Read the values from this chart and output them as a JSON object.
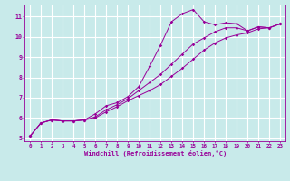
{
  "bg_color": "#c8eaea",
  "grid_color": "#b0d8d8",
  "line_color": "#990099",
  "xlabel": "Windchill (Refroidissement éolien,°C)",
  "xlim": [
    -0.5,
    23.5
  ],
  "ylim": [
    4.85,
    11.6
  ],
  "yticks": [
    5,
    6,
    7,
    8,
    9,
    10,
    11
  ],
  "xticks": [
    0,
    1,
    2,
    3,
    4,
    5,
    6,
    7,
    8,
    9,
    10,
    11,
    12,
    13,
    14,
    15,
    16,
    17,
    18,
    19,
    20,
    21,
    22,
    23
  ],
  "line1_x": [
    0,
    1,
    2,
    3,
    4,
    5,
    6,
    7,
    8,
    9,
    10,
    11,
    12,
    13,
    14,
    15,
    16,
    17,
    18,
    19,
    20,
    21,
    22,
    23
  ],
  "line1_y": [
    5.1,
    5.75,
    5.9,
    5.85,
    5.85,
    5.9,
    6.2,
    6.6,
    6.75,
    7.05,
    7.55,
    8.55,
    9.6,
    10.75,
    11.15,
    11.35,
    10.75,
    10.6,
    10.7,
    10.65,
    10.3,
    10.5,
    10.45,
    10.65
  ],
  "line2_x": [
    0,
    1,
    2,
    3,
    4,
    5,
    6,
    7,
    8,
    9,
    10,
    11,
    12,
    13,
    14,
    15,
    16,
    17,
    18,
    19,
    20,
    21,
    22,
    23
  ],
  "line2_y": [
    5.1,
    5.75,
    5.9,
    5.85,
    5.85,
    5.9,
    6.0,
    6.3,
    6.55,
    6.85,
    7.1,
    7.35,
    7.65,
    8.05,
    8.45,
    8.9,
    9.35,
    9.7,
    9.95,
    10.1,
    10.2,
    10.4,
    10.45,
    10.65
  ],
  "line3_x": [
    0,
    1,
    2,
    3,
    4,
    5,
    6,
    7,
    8,
    9,
    10,
    11,
    12,
    13,
    14,
    15,
    16,
    17,
    18,
    19,
    20,
    21,
    22,
    23
  ],
  "line3_y": [
    5.1,
    5.75,
    5.9,
    5.85,
    5.85,
    5.9,
    6.05,
    6.4,
    6.65,
    6.95,
    7.35,
    7.75,
    8.15,
    8.65,
    9.15,
    9.65,
    9.95,
    10.25,
    10.45,
    10.45,
    10.3,
    10.5,
    10.45,
    10.65
  ]
}
